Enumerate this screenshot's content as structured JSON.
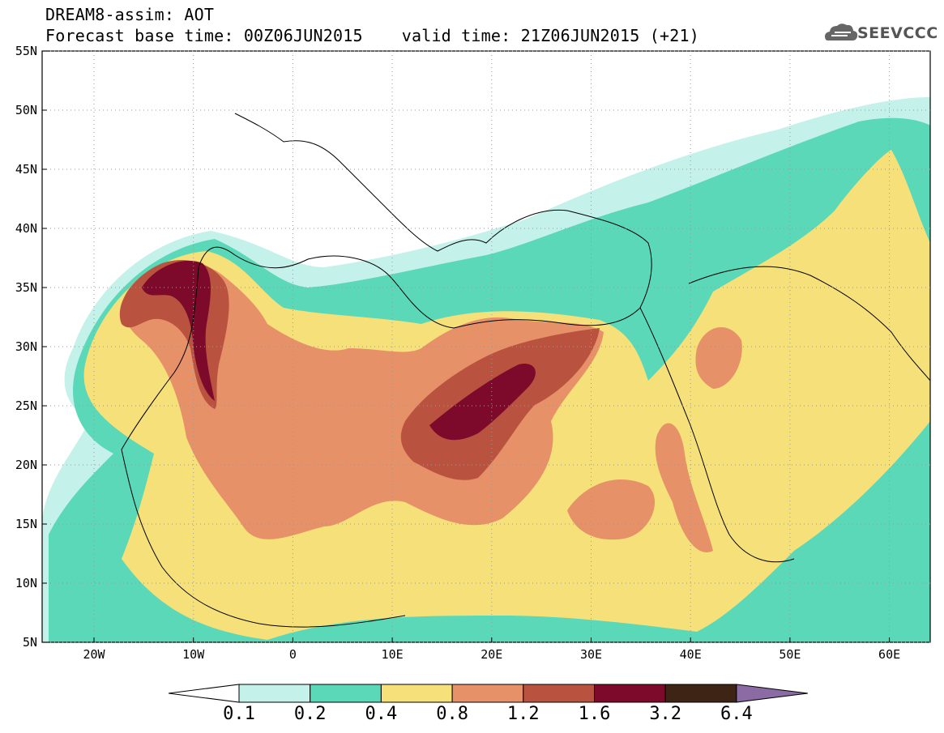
{
  "header": {
    "line1": "DREAM8-assim: AOT",
    "base_time": "Forecast base time: 00Z06JUN2015",
    "valid_time": "valid time: 21Z06JUN2015 (+21)"
  },
  "logo": {
    "text": "SEEVCCC",
    "icon": "cloud-icon"
  },
  "axes": {
    "lon_labels": [
      "20W",
      "10W",
      "0",
      "10E",
      "20E",
      "30E",
      "40E",
      "50E",
      "60E"
    ],
    "lat_labels": [
      "55N",
      "50N",
      "45N",
      "40N",
      "35N",
      "30N",
      "25N",
      "20N",
      "15N",
      "10N",
      "5N"
    ]
  },
  "colorbar": {
    "labels": [
      "0.1",
      "0.2",
      "0.4",
      "0.8",
      "1.2",
      "1.6",
      "3.2",
      "6.4"
    ],
    "colors": [
      "#ffffff",
      "#c4f1ea",
      "#5ad8b8",
      "#f6e07a",
      "#e79168",
      "#b95340",
      "#7e0a2b",
      "#3d2414",
      "#8c6aa3"
    ]
  },
  "palette": {
    "c1": "#c4f1ea",
    "c2": "#5ad8b8",
    "c3": "#f6e07a",
    "c4": "#e79168",
    "c5": "#b95340",
    "c6": "#7e0a2b",
    "c7": "#3d2414"
  }
}
